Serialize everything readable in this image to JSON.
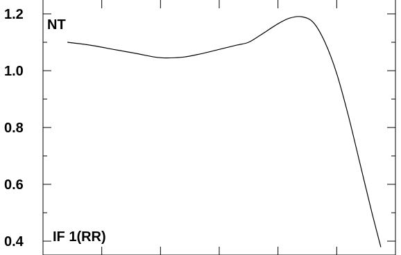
{
  "chart_data": {
    "type": "line",
    "annotations": [
      "NT",
      "IF 1(RR)"
    ],
    "ylim": [
      0.4,
      1.2
    ],
    "xlim": [
      0,
      6
    ],
    "y_ticks": [
      0.4,
      0.6,
      0.8,
      1.0,
      1.2
    ],
    "y_tick_labels": [
      "0.4",
      "0.6",
      "0.8",
      "1.0",
      "1.2"
    ],
    "x_ticks": [
      1,
      2,
      3,
      4,
      5
    ],
    "x_tick_labels": [],
    "grid": false,
    "series": [
      {
        "color": "#000000",
        "x": [
          0.42,
          0.8,
          1.2,
          1.6,
          1.9,
          2.1,
          2.4,
          2.7,
          3.0,
          3.3,
          3.5,
          3.7,
          4.0,
          4.2,
          4.4,
          4.6,
          4.8,
          5.0,
          5.2,
          5.4,
          5.6,
          5.75
        ],
        "y": [
          1.1,
          1.09,
          1.075,
          1.06,
          1.048,
          1.045,
          1.048,
          1.06,
          1.075,
          1.09,
          1.1,
          1.125,
          1.165,
          1.185,
          1.19,
          1.17,
          1.1,
          0.99,
          0.84,
          0.67,
          0.5,
          0.38
        ]
      }
    ]
  }
}
